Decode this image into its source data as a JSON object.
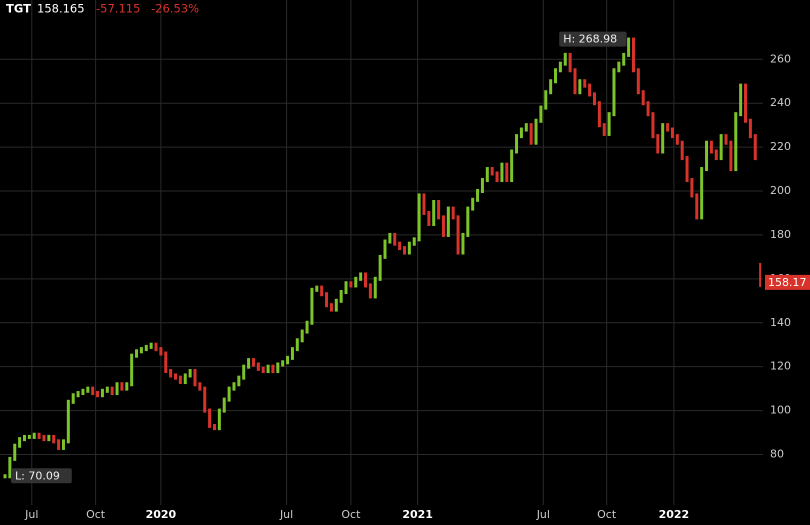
{
  "chart_data": {
    "type": "price-bars",
    "symbol": "TGT",
    "last": {
      "value": 158.165,
      "label": "158.17"
    },
    "change": "-57.115",
    "change_pct": "-26.53%",
    "up_color": "#7cc42a",
    "down_color": "#d8332a",
    "grid": true,
    "xlim": [
      0,
      156
    ],
    "ylim": [
      57,
      287
    ],
    "yticks": [
      80,
      100,
      120,
      140,
      160,
      180,
      200,
      220,
      240,
      260
    ],
    "xticks": [
      {
        "value": 5.5,
        "label": "Jul"
      },
      {
        "value": 18.6,
        "label": "Oct"
      },
      {
        "value": 32,
        "label": "2020"
      },
      {
        "value": 57.8,
        "label": "Jul"
      },
      {
        "value": 71,
        "label": "Oct"
      },
      {
        "value": 84.7,
        "label": "2021"
      },
      {
        "value": 110.5,
        "label": "Jul"
      },
      {
        "value": 123.5,
        "label": "Oct"
      },
      {
        "value": 137.3,
        "label": "2022"
      }
    ],
    "values": [
      70.09,
      78,
      84,
      87,
      88,
      88,
      89,
      88,
      87,
      88,
      86,
      83,
      86,
      104,
      107,
      108,
      109,
      110,
      108,
      107,
      109,
      110,
      108,
      112,
      110,
      112,
      125,
      127,
      128,
      129,
      130,
      128,
      126,
      118,
      116,
      115,
      113,
      116,
      118,
      112,
      110,
      100,
      93,
      92,
      100,
      105,
      110,
      112,
      115,
      120,
      123,
      121,
      119,
      118,
      120,
      118,
      121,
      122,
      124,
      128,
      132,
      136,
      140,
      155,
      156,
      153,
      148,
      146,
      150,
      154,
      158,
      157,
      160,
      162,
      157,
      152,
      160,
      170,
      177,
      180,
      176,
      174,
      172,
      176,
      178,
      198,
      190,
      185,
      195,
      188,
      180,
      192,
      188,
      172,
      180,
      192,
      196,
      200,
      205,
      210,
      208,
      205,
      212,
      205,
      218,
      225,
      228,
      230,
      222,
      232,
      238,
      245,
      250,
      255,
      258,
      262,
      255,
      245,
      250,
      248,
      244,
      240,
      230,
      226,
      235,
      255,
      258,
      262,
      268.98,
      255,
      245,
      240,
      235,
      225,
      218,
      230,
      228,
      225,
      222,
      215,
      205,
      198,
      188,
      210,
      222,
      218,
      215,
      225,
      222,
      210,
      235,
      248,
      232,
      225,
      215,
      158.165
    ],
    "annotations": [
      {
        "x": 128,
        "value": 268.98,
        "label": "H: 268.98"
      },
      {
        "x": 0,
        "value": 70.09,
        "label": "L: 70.09"
      }
    ]
  }
}
